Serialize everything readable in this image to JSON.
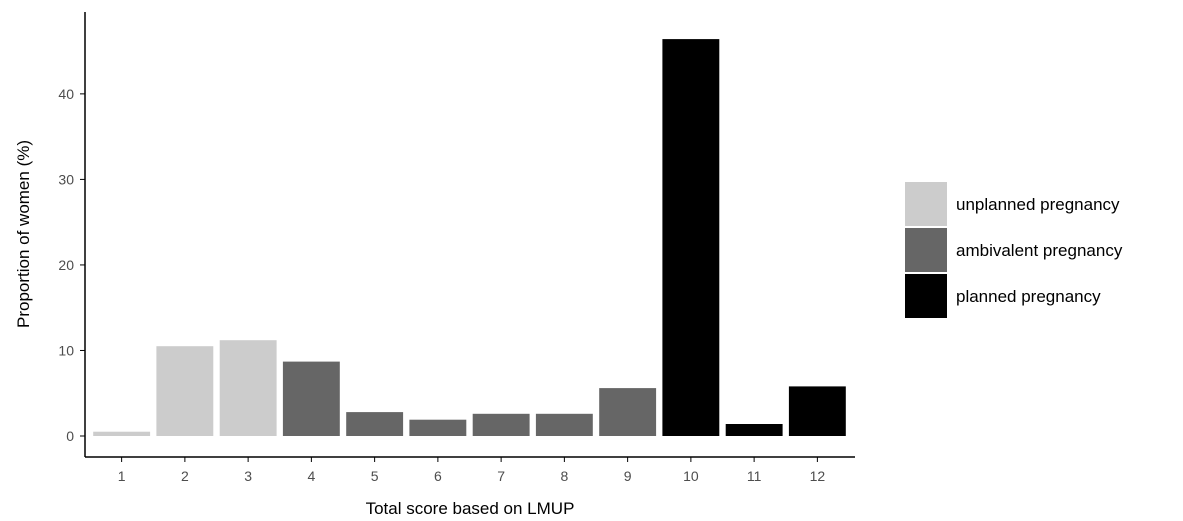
{
  "colors": {
    "unplanned": "#cccccc",
    "ambivalent": "#666666",
    "planned": "#000000"
  },
  "chart_data": {
    "type": "bar",
    "xlabel": "Total score based on LMUP",
    "ylabel": "Proportion of women (%)",
    "ylim": [
      0,
      47
    ],
    "yticks": [
      0,
      10,
      20,
      30,
      40
    ],
    "categories": [
      "1",
      "2",
      "3",
      "4",
      "5",
      "6",
      "7",
      "8",
      "9",
      "10",
      "11",
      "12"
    ],
    "values": [
      0.5,
      10.5,
      11.2,
      8.7,
      2.8,
      1.9,
      2.6,
      2.6,
      5.6,
      46.4,
      1.4,
      5.8
    ],
    "groups": [
      "unplanned",
      "unplanned",
      "unplanned",
      "ambivalent",
      "ambivalent",
      "ambivalent",
      "ambivalent",
      "ambivalent",
      "ambivalent",
      "planned",
      "planned",
      "planned"
    ],
    "legend": [
      {
        "key": "unplanned",
        "label": "unplanned pregnancy"
      },
      {
        "key": "ambivalent",
        "label": "ambivalent pregnancy"
      },
      {
        "key": "planned",
        "label": "planned pregnancy"
      }
    ],
    "legend_position": "right",
    "grid": false
  }
}
